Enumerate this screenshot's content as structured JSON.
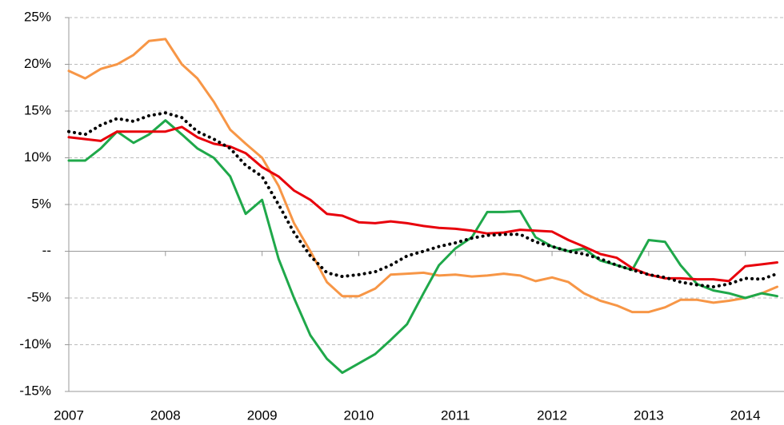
{
  "chart_data": {
    "type": "line",
    "x": [
      2007,
      2007.17,
      2007.33,
      2007.5,
      2007.67,
      2007.83,
      2008,
      2008.17,
      2008.33,
      2008.5,
      2008.67,
      2008.83,
      2009,
      2009.17,
      2009.33,
      2009.5,
      2009.67,
      2009.83,
      2010,
      2010.17,
      2010.33,
      2010.5,
      2010.67,
      2010.83,
      2011,
      2011.17,
      2011.33,
      2011.5,
      2011.67,
      2011.83,
      2012,
      2012.17,
      2012.33,
      2012.5,
      2012.67,
      2012.83,
      2013,
      2013.17,
      2013.33,
      2013.5,
      2013.67,
      2013.83,
      2014,
      2014.17,
      2014.33
    ],
    "series": [
      {
        "color": "#f79646",
        "style": "solid",
        "values": [
          19.3,
          18.5,
          19.5,
          20,
          21,
          22.5,
          22.7,
          20,
          18.5,
          16,
          13,
          11.5,
          10,
          7,
          3,
          0,
          -3.3,
          -4.8,
          -4.8,
          -4,
          -2.5,
          -2.4,
          -2.3,
          -2.6,
          -2.5,
          -2.7,
          -2.6,
          -2.4,
          -2.6,
          -3.2,
          -2.8,
          -3.3,
          -4.5,
          -5.3,
          -5.8,
          -6.5,
          -6.5,
          -6,
          -5.2,
          -5.2,
          -5.5,
          -5.3,
          -5,
          -4.5,
          -3.8
        ]
      },
      {
        "color": "#1fa84a",
        "style": "solid",
        "values": [
          9.7,
          9.7,
          11,
          12.8,
          11.6,
          12.5,
          14,
          12.5,
          11,
          10,
          8,
          4,
          5.5,
          -0.8,
          -5,
          -9,
          -11.5,
          -13,
          -12,
          -11,
          -9.5,
          -7.8,
          -4.5,
          -1.5,
          0.3,
          1.5,
          4.2,
          4.2,
          4.3,
          1.5,
          0.5,
          0,
          0.3,
          -1,
          -1.5,
          -2,
          1.2,
          1,
          -1.5,
          -3.5,
          -4.2,
          -4.5,
          -5,
          -4.5,
          -4.8
        ]
      },
      {
        "color": "#e8000b",
        "style": "solid",
        "values": [
          12.2,
          12,
          11.8,
          12.8,
          12.8,
          12.8,
          12.8,
          13.3,
          12.2,
          11.5,
          11.2,
          10.5,
          9,
          8,
          6.5,
          5.5,
          4,
          3.8,
          3.1,
          3,
          3.2,
          3,
          2.7,
          2.5,
          2.4,
          2.2,
          1.9,
          2,
          2.3,
          2.2,
          2.1,
          1.2,
          0.5,
          -0.3,
          -0.7,
          -1.8,
          -2.5,
          -2.9,
          -2.9,
          -3,
          -3,
          -3.2,
          -1.6,
          -1.4,
          -1.2
        ]
      },
      {
        "color": "#000000",
        "style": "dotted",
        "values": [
          12.8,
          12.5,
          13.5,
          14.2,
          13.9,
          14.5,
          14.8,
          14.3,
          12.8,
          12,
          11,
          9.2,
          8,
          5,
          2,
          -0.5,
          -2.3,
          -2.7,
          -2.5,
          -2.2,
          -1.5,
          -0.5,
          0,
          0.5,
          0.9,
          1.4,
          1.7,
          1.8,
          1.8,
          1,
          0.5,
          0,
          -0.3,
          -0.8,
          -1.5,
          -2,
          -2.5,
          -2.8,
          -3.3,
          -3.6,
          -3.8,
          -3.5,
          -2.9,
          -3,
          -2.4
        ]
      }
    ],
    "xlim": [
      2007,
      2014.4
    ],
    "xticks": [
      2007,
      2008,
      2009,
      2010,
      2011,
      2012,
      2013,
      2014
    ],
    "ylim": [
      -15,
      25
    ],
    "yticks": [
      {
        "value": -15,
        "label": "-15%"
      },
      {
        "value": -10,
        "label": "-10%"
      },
      {
        "value": -5,
        "label": "-5%"
      },
      {
        "value": 0,
        "label": "--"
      },
      {
        "value": 5,
        "label": "5%"
      },
      {
        "value": 10,
        "label": "10%"
      },
      {
        "value": 15,
        "label": "15%"
      },
      {
        "value": 20,
        "label": "20%"
      },
      {
        "value": 25,
        "label": "25%"
      }
    ],
    "grid": true
  }
}
